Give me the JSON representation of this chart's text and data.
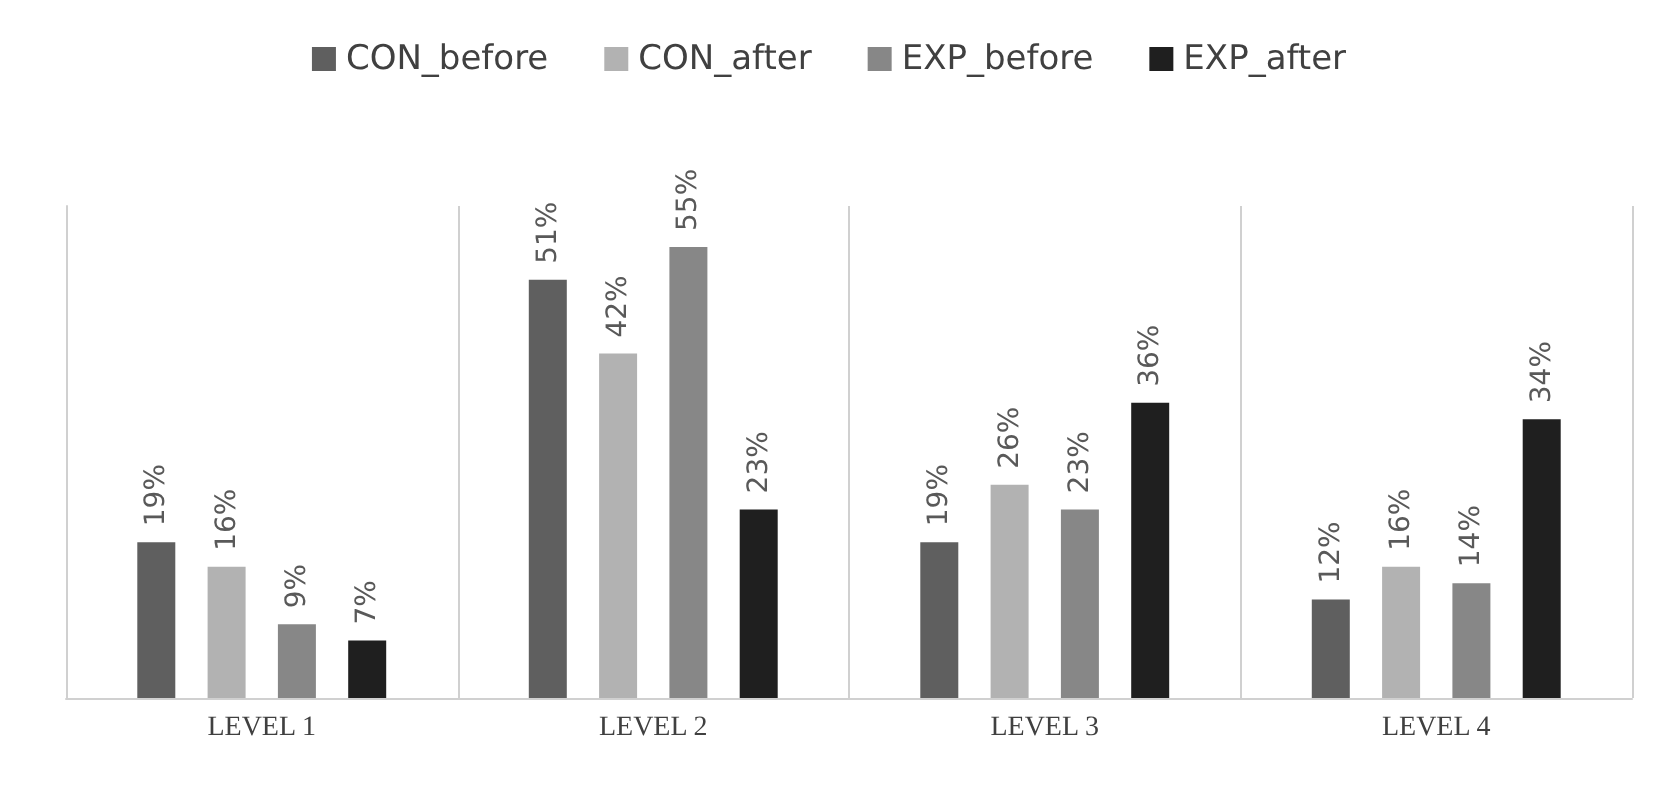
{
  "chart_data": {
    "type": "bar",
    "categories": [
      "LEVEL 1",
      "LEVEL 2",
      "LEVEL 3",
      "LEVEL 4"
    ],
    "series": [
      {
        "name": "CON_before",
        "color": "#5f5f5f",
        "values": [
          19,
          51,
          19,
          12
        ],
        "value_labels": [
          "19%",
          "51%",
          "19%",
          "12%"
        ]
      },
      {
        "name": "CON_after",
        "color": "#b2b2b2",
        "values": [
          16,
          42,
          26,
          16
        ],
        "value_labels": [
          "16%",
          "42%",
          "26%",
          "16%"
        ]
      },
      {
        "name": "EXP_before",
        "color": "#878787",
        "values": [
          9,
          55,
          23,
          14
        ],
        "value_labels": [
          "9%",
          "55%",
          "23%",
          "14%"
        ]
      },
      {
        "name": "EXP_after",
        "color": "#1f1f1f",
        "values": [
          7,
          23,
          36,
          34
        ],
        "value_labels": [
          "7%",
          "23%",
          "36%",
          "34%"
        ]
      }
    ],
    "legend": "top",
    "grid": "x"
  }
}
